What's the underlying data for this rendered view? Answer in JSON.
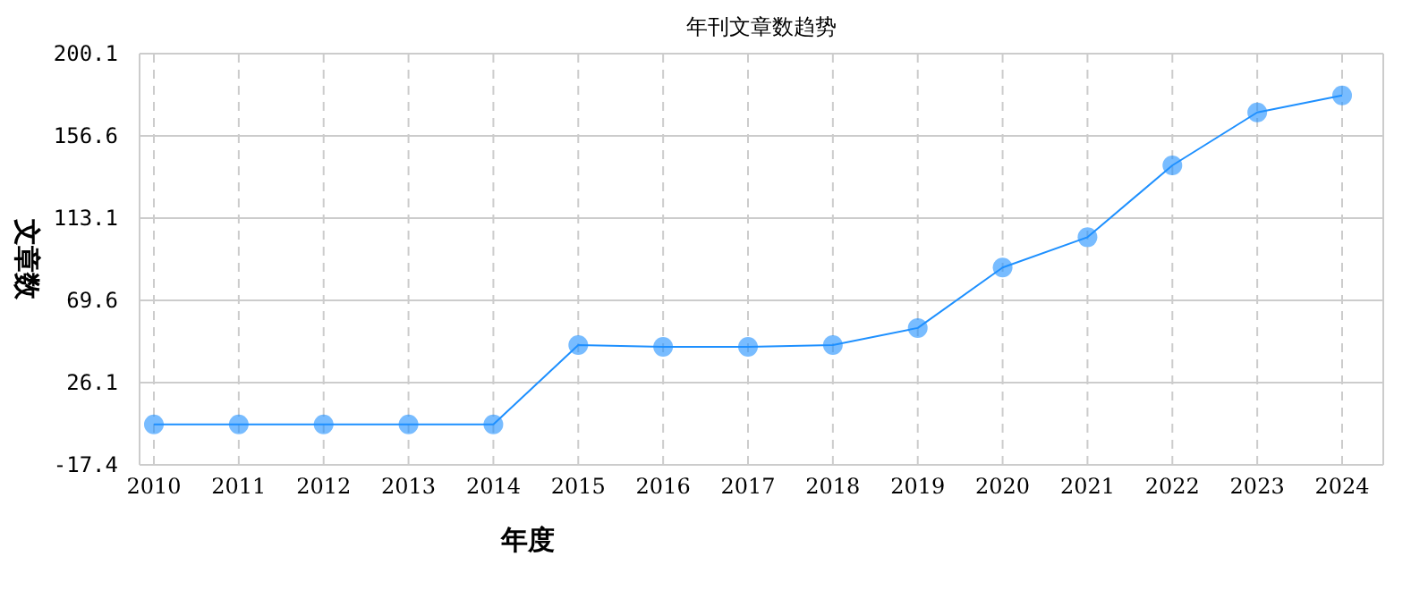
{
  "chart_data": {
    "type": "line",
    "title": "年刊文章数趋势",
    "xlabel": "年度",
    "ylabel": "文章数",
    "categories": [
      "2010",
      "2011",
      "2012",
      "2013",
      "2014",
      "2015",
      "2016",
      "2017",
      "2018",
      "2019",
      "2020",
      "2021",
      "2022",
      "2023",
      "2024"
    ],
    "series": [
      {
        "color": "#1e90ff",
        "values": [
          4,
          4,
          4,
          4,
          4,
          46,
          45,
          45,
          46,
          55,
          87,
          103,
          141,
          169,
          178
        ]
      }
    ],
    "ylim": [
      -17.4,
      200.1
    ],
    "yticks": [
      {
        "value": -17.4,
        "label": "-17.4"
      },
      26.1,
      69.6,
      113.1,
      156.6,
      200.1
    ],
    "grid": true,
    "marker": "circle",
    "line_style": "solid"
  }
}
